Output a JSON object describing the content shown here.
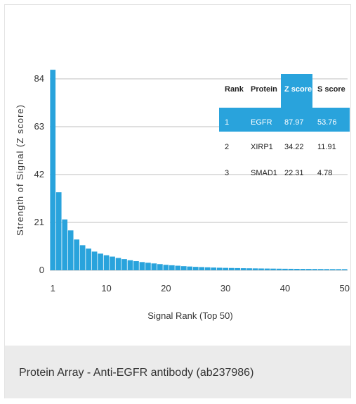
{
  "chart_data": {
    "type": "bar",
    "xlabel": "Signal Rank (Top 50)",
    "ylabel": "Strength of Signal (Z score)",
    "yticks": [
      0,
      21,
      42,
      63,
      84
    ],
    "xticks": [
      1,
      10,
      20,
      30,
      40,
      50
    ],
    "ylim": [
      0,
      88
    ],
    "grid": true,
    "bar_color": "#29a3dc",
    "x": [
      1,
      2,
      3,
      4,
      5,
      6,
      7,
      8,
      9,
      10,
      11,
      12,
      13,
      14,
      15,
      16,
      17,
      18,
      19,
      20,
      21,
      22,
      23,
      24,
      25,
      26,
      27,
      28,
      29,
      30,
      31,
      32,
      33,
      34,
      35,
      36,
      37,
      38,
      39,
      40,
      41,
      42,
      43,
      44,
      45,
      46,
      47,
      48,
      49,
      50
    ],
    "values": [
      87.97,
      34.22,
      22.31,
      17.5,
      13.5,
      11,
      9.5,
      8.2,
      7.3,
      6.6,
      6.0,
      5.4,
      4.9,
      4.4,
      4.0,
      3.6,
      3.3,
      3.0,
      2.7,
      2.4,
      2.2,
      2.0,
      1.8,
      1.65,
      1.5,
      1.4,
      1.3,
      1.2,
      1.12,
      1.05,
      1.0,
      0.95,
      0.9,
      0.86,
      0.82,
      0.78,
      0.75,
      0.72,
      0.69,
      0.66,
      0.64,
      0.62,
      0.6,
      0.58,
      0.56,
      0.54,
      0.52,
      0.5,
      0.49,
      0.48
    ]
  },
  "table": {
    "headers": [
      "Rank",
      "Protein",
      "Z score",
      "S score"
    ],
    "rows": [
      [
        "1",
        "EGFR",
        "87.97",
        "53.76"
      ],
      [
        "2",
        "XIRP1",
        "34.22",
        "11.91"
      ],
      [
        "3",
        "SMAD1",
        "22.31",
        "4.78"
      ]
    ],
    "highlight_color": "#29a3dc"
  },
  "caption": "Protein Array - Anti-EGFR antibody (ab237986)"
}
